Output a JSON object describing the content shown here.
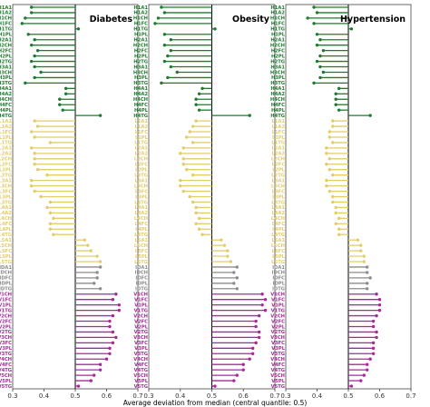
{
  "chart_data": {
    "type": "lollipop",
    "title": "",
    "xlabel": "Average deviation from median (central quantile: 0.5)",
    "ylabel": "",
    "xlim": [
      0.3,
      0.7
    ],
    "reference_line": 0.5,
    "xticks": [
      "0.3",
      "0.4",
      "0.5",
      "0.6",
      "0.7"
    ],
    "grid": false,
    "colors": {
      "green": "#1e7b2e",
      "yellow": "#e3cc6a",
      "gray": "#8c8c8c",
      "magenta": "#a8289a"
    },
    "categories": [
      "H1A1",
      "H1A2",
      "H1CH",
      "H1FC",
      "H1TG",
      "H1PL",
      "H2A1",
      "H2CH",
      "H2FC",
      "H2PL",
      "H2TG",
      "H3A1",
      "H3CH",
      "H3PL",
      "H3TG",
      "H4A1",
      "H4A2",
      "H4CH",
      "H4FC",
      "H4PL",
      "H4TG",
      "L1A1",
      "L1A2",
      "L1FC",
      "L1PL",
      "L1TG",
      "L2A1",
      "L2A2",
      "L2CH",
      "L2FC",
      "L2PL",
      "L2TG",
      "L3A1",
      "L3CH",
      "L3FC",
      "L3PL",
      "L3TG",
      "L4A1",
      "L4A2",
      "L4CH",
      "L4FC",
      "L4PL",
      "L4TG",
      "L5A1",
      "L5CH",
      "L5FC",
      "L5PL",
      "L5TG",
      "IDA1",
      "IDCH",
      "IDFC",
      "IDPL",
      "IDTG",
      "V1CH",
      "V1FC",
      "V1PL",
      "V1TG",
      "V2CH",
      "V2FC",
      "V2PL",
      "V2TG",
      "V3CH",
      "V3FC",
      "V3PL",
      "V3TG",
      "V4CH",
      "V4FC",
      "V4TG",
      "V5CH",
      "V5PL",
      "V5TG"
    ],
    "groups": [
      "green",
      "green",
      "green",
      "green",
      "green",
      "green",
      "green",
      "green",
      "green",
      "green",
      "green",
      "green",
      "green",
      "green",
      "green",
      "green",
      "green",
      "green",
      "green",
      "green",
      "green",
      "yellow",
      "yellow",
      "yellow",
      "yellow",
      "yellow",
      "yellow",
      "yellow",
      "yellow",
      "yellow",
      "yellow",
      "yellow",
      "yellow",
      "yellow",
      "yellow",
      "yellow",
      "yellow",
      "yellow",
      "yellow",
      "yellow",
      "yellow",
      "yellow",
      "yellow",
      "yellow",
      "yellow",
      "yellow",
      "yellow",
      "yellow",
      "gray",
      "gray",
      "gray",
      "gray",
      "gray",
      "magenta",
      "magenta",
      "magenta",
      "magenta",
      "magenta",
      "magenta",
      "magenta",
      "magenta",
      "magenta",
      "magenta",
      "magenta",
      "magenta",
      "magenta",
      "magenta",
      "magenta",
      "magenta",
      "magenta",
      "magenta"
    ],
    "series": [
      {
        "name": "Diabetes",
        "values": [
          0.36,
          0.36,
          0.34,
          0.33,
          0.51,
          0.35,
          0.37,
          0.36,
          0.38,
          0.37,
          0.36,
          0.37,
          0.39,
          0.37,
          0.34,
          0.47,
          0.47,
          0.45,
          0.45,
          0.46,
          0.58,
          0.37,
          0.38,
          0.36,
          0.37,
          0.42,
          0.36,
          0.37,
          0.37,
          0.37,
          0.38,
          0.41,
          0.36,
          0.36,
          0.37,
          0.39,
          0.42,
          0.41,
          0.42,
          0.43,
          0.42,
          0.42,
          0.43,
          0.53,
          0.54,
          0.55,
          0.57,
          0.58,
          0.58,
          0.57,
          0.57,
          0.56,
          0.58,
          0.63,
          0.62,
          0.64,
          0.64,
          0.62,
          0.61,
          0.61,
          0.62,
          0.63,
          0.62,
          0.61,
          0.61,
          0.6,
          0.58,
          0.58,
          0.56,
          0.55,
          0.51
        ]
      },
      {
        "name": "Obesity",
        "values": [
          0.34,
          0.35,
          0.33,
          0.32,
          0.51,
          0.35,
          0.37,
          0.35,
          0.37,
          0.36,
          0.35,
          0.37,
          0.39,
          0.36,
          0.34,
          0.47,
          0.46,
          0.45,
          0.45,
          0.46,
          0.62,
          0.45,
          0.44,
          0.43,
          0.42,
          0.44,
          0.41,
          0.4,
          0.41,
          0.41,
          0.42,
          0.44,
          0.4,
          0.4,
          0.41,
          0.43,
          0.44,
          0.45,
          0.45,
          0.46,
          0.45,
          0.46,
          0.47,
          0.53,
          0.54,
          0.55,
          0.55,
          0.56,
          0.58,
          0.57,
          0.58,
          0.57,
          0.58,
          0.66,
          0.67,
          0.66,
          0.67,
          0.65,
          0.64,
          0.64,
          0.65,
          0.65,
          0.64,
          0.63,
          0.63,
          0.62,
          0.6,
          0.6,
          0.58,
          0.57,
          0.51
        ]
      },
      {
        "name": "Hypertension",
        "values": [
          0.39,
          0.4,
          0.37,
          0.39,
          0.51,
          0.4,
          0.41,
          0.4,
          0.42,
          0.41,
          0.4,
          0.41,
          0.42,
          0.41,
          0.39,
          0.47,
          0.46,
          0.46,
          0.46,
          0.47,
          0.57,
          0.45,
          0.45,
          0.44,
          0.44,
          0.45,
          0.43,
          0.43,
          0.44,
          0.43,
          0.44,
          0.45,
          0.43,
          0.43,
          0.44,
          0.45,
          0.45,
          0.46,
          0.46,
          0.47,
          0.46,
          0.47,
          0.47,
          0.53,
          0.54,
          0.54,
          0.55,
          0.55,
          0.56,
          0.56,
          0.57,
          0.56,
          0.56,
          0.59,
          0.6,
          0.6,
          0.6,
          0.59,
          0.58,
          0.58,
          0.59,
          0.59,
          0.58,
          0.58,
          0.58,
          0.57,
          0.56,
          0.56,
          0.55,
          0.54,
          0.51
        ]
      }
    ]
  }
}
